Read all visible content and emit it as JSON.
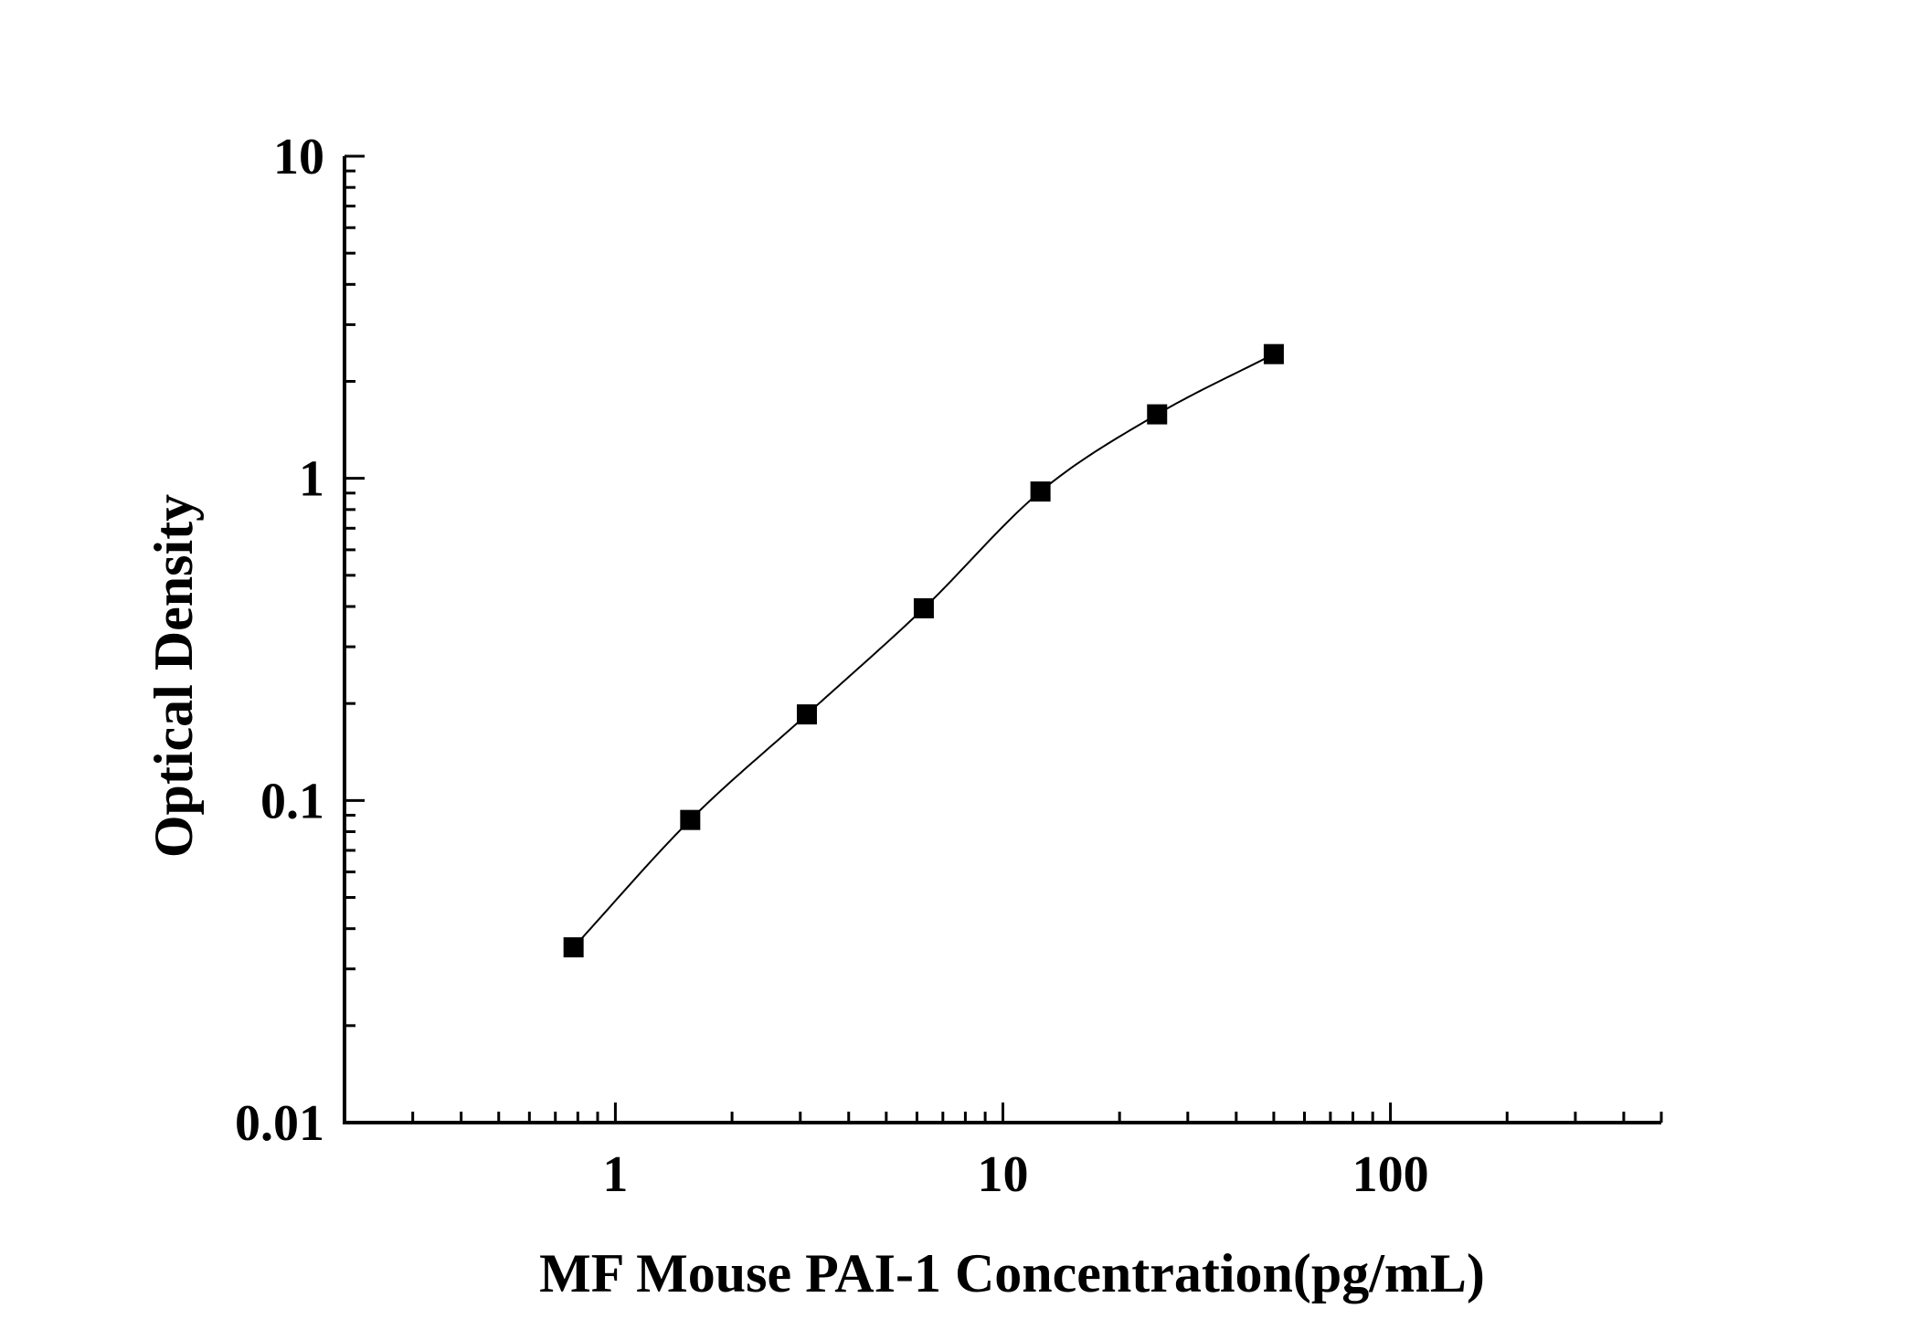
{
  "chart_data": {
    "type": "scatter",
    "title": "",
    "xlabel": "MF Mouse PAI-1 Concentration(pg/mL)",
    "ylabel": "Optical Density",
    "xscale": "log",
    "yscale": "log",
    "xlim": [
      0.2,
      500
    ],
    "ylim": [
      0.01,
      10
    ],
    "x_ticks": [
      {
        "value": 1,
        "label": "1"
      },
      {
        "value": 10,
        "label": "10"
      },
      {
        "value": 100,
        "label": "100"
      }
    ],
    "y_ticks": [
      {
        "value": 0.01,
        "label": "0.01"
      },
      {
        "value": 0.1,
        "label": "0.1"
      },
      {
        "value": 1,
        "label": "1"
      },
      {
        "value": 10,
        "label": "10"
      }
    ],
    "grid": false,
    "legend": "none",
    "series": [
      {
        "marker": "square",
        "color": "#000000",
        "x": [
          0.78,
          1.56,
          3.12,
          6.25,
          12.5,
          25,
          50
        ],
        "y": [
          0.035,
          0.087,
          0.185,
          0.395,
          0.91,
          1.58,
          2.43
        ],
        "fit_curve": true
      }
    ]
  }
}
